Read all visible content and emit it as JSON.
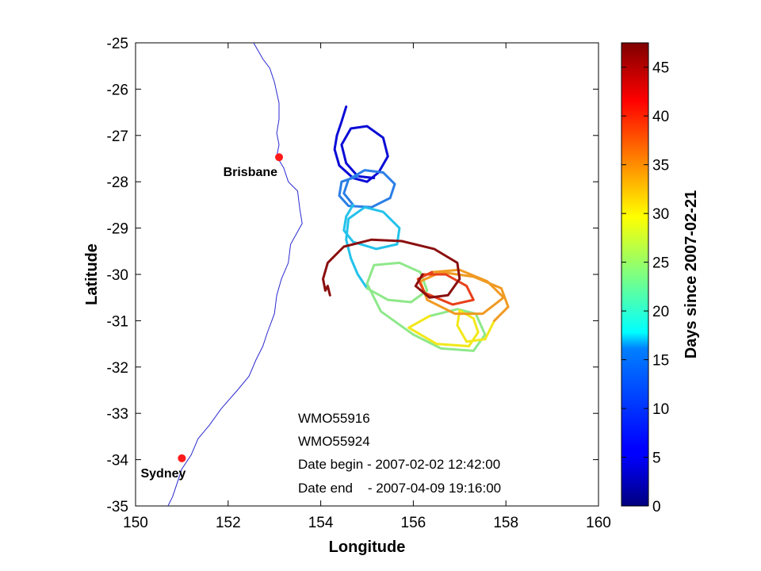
{
  "chart_data": {
    "type": "line",
    "xlabel": "Longitude",
    "ylabel": "Latitude",
    "xlim": [
      150,
      160
    ],
    "ylim": [
      -35,
      -25
    ],
    "x_ticks": [
      "150",
      "152",
      "154",
      "156",
      "158",
      "160"
    ],
    "y_ticks": [
      "-25",
      "-26",
      "-27",
      "-28",
      "-29",
      "-30",
      "-31",
      "-32",
      "-33",
      "-34",
      "-35"
    ],
    "colorbar": {
      "label": "Days since 2007-02-21",
      "range": [
        0,
        47.5
      ],
      "ticks": [
        "0",
        "5",
        "10",
        "15",
        "20",
        "25",
        "30",
        "35",
        "40",
        "45"
      ],
      "colormap": "jet"
    },
    "cities": [
      {
        "name": "Brisbane",
        "lon": 153.1,
        "lat": -27.47,
        "color": "#ff1a1a"
      },
      {
        "name": "Sydney",
        "lon": 151.0,
        "lat": -33.97,
        "color": "#ff1a1a"
      }
    ],
    "annotations": [
      "WMO55916",
      "WMO55924",
      "Date begin - 2007-02-02 12:42:00",
      "Date end    - 2007-04-09 19:16:00"
    ],
    "coastline_color": "#2a2acf",
    "coastline": [
      [
        152.55,
        -25.0
      ],
      [
        152.75,
        -25.35
      ],
      [
        152.9,
        -25.55
      ],
      [
        153.0,
        -25.85
      ],
      [
        153.1,
        -26.3
      ],
      [
        153.1,
        -26.65
      ],
      [
        153.05,
        -26.95
      ],
      [
        153.1,
        -27.2
      ],
      [
        153.05,
        -27.45
      ],
      [
        153.2,
        -27.7
      ],
      [
        153.3,
        -28.0
      ],
      [
        153.5,
        -28.2
      ],
      [
        153.55,
        -28.6
      ],
      [
        153.6,
        -28.9
      ],
      [
        153.35,
        -29.35
      ],
      [
        153.3,
        -29.75
      ],
      [
        153.15,
        -30.1
      ],
      [
        153.05,
        -30.45
      ],
      [
        153.0,
        -30.85
      ],
      [
        152.85,
        -31.25
      ],
      [
        152.75,
        -31.55
      ],
      [
        152.6,
        -31.85
      ],
      [
        152.45,
        -32.2
      ],
      [
        152.2,
        -32.5
      ],
      [
        151.85,
        -32.9
      ],
      [
        151.6,
        -33.25
      ],
      [
        151.35,
        -33.55
      ],
      [
        151.2,
        -33.9
      ],
      [
        151.0,
        -34.2
      ],
      [
        150.9,
        -34.5
      ],
      [
        150.8,
        -34.8
      ],
      [
        150.7,
        -35.0
      ]
    ],
    "series": [
      {
        "color": "#0b0bd6",
        "points": [
          [
            154.55,
            -26.38
          ],
          [
            154.45,
            -26.7
          ],
          [
            154.35,
            -27.0
          ],
          [
            154.3,
            -27.3
          ],
          [
            154.4,
            -27.65
          ],
          [
            154.7,
            -27.92
          ],
          [
            155.0,
            -28.0
          ],
          [
            155.25,
            -27.8
          ],
          [
            155.45,
            -27.45
          ],
          [
            155.35,
            -27.05
          ],
          [
            155.0,
            -26.8
          ],
          [
            154.65,
            -26.85
          ],
          [
            154.45,
            -27.2
          ],
          [
            154.55,
            -27.6
          ],
          [
            154.8,
            -27.88
          ],
          [
            155.15,
            -27.92
          ]
        ]
      },
      {
        "color": "#2a7ee6",
        "points": [
          [
            154.8,
            -27.88
          ],
          [
            154.45,
            -28.0
          ],
          [
            154.4,
            -28.3
          ],
          [
            154.6,
            -28.52
          ],
          [
            155.1,
            -28.55
          ],
          [
            155.5,
            -28.35
          ],
          [
            155.6,
            -28.05
          ],
          [
            155.35,
            -27.8
          ],
          [
            154.95,
            -27.75
          ],
          [
            154.6,
            -27.95
          ],
          [
            154.5,
            -28.25
          ],
          [
            154.7,
            -28.5
          ]
        ]
      },
      {
        "color": "#24c2ea",
        "points": [
          [
            154.7,
            -28.5
          ],
          [
            154.55,
            -28.75
          ],
          [
            154.5,
            -29.05
          ],
          [
            154.7,
            -29.3
          ],
          [
            155.2,
            -29.45
          ],
          [
            155.65,
            -29.35
          ],
          [
            155.7,
            -29.0
          ],
          [
            155.35,
            -28.65
          ],
          [
            154.95,
            -28.55
          ],
          [
            154.6,
            -28.8
          ],
          [
            154.55,
            -29.25
          ],
          [
            154.65,
            -29.65
          ],
          [
            154.8,
            -30.0
          ],
          [
            155.0,
            -30.3
          ]
        ]
      },
      {
        "color": "#8ee88a",
        "points": [
          [
            155.0,
            -30.3
          ],
          [
            155.45,
            -30.55
          ],
          [
            155.95,
            -30.6
          ],
          [
            156.3,
            -30.35
          ],
          [
            156.15,
            -29.95
          ],
          [
            155.7,
            -29.75
          ],
          [
            155.15,
            -29.8
          ],
          [
            155.0,
            -30.2
          ],
          [
            155.3,
            -30.8
          ],
          [
            156.0,
            -31.3
          ],
          [
            156.6,
            -31.6
          ],
          [
            157.3,
            -31.65
          ],
          [
            157.55,
            -31.3
          ],
          [
            157.35,
            -30.85
          ],
          [
            156.95,
            -30.75
          ],
          [
            156.35,
            -30.9
          ]
        ]
      },
      {
        "color": "#f2e81a",
        "points": [
          [
            156.35,
            -30.9
          ],
          [
            155.9,
            -31.15
          ],
          [
            156.5,
            -31.5
          ],
          [
            157.2,
            -31.55
          ],
          [
            157.4,
            -31.25
          ],
          [
            157.3,
            -30.95
          ],
          [
            157.0,
            -30.78
          ],
          [
            156.95,
            -31.1
          ],
          [
            157.15,
            -31.45
          ],
          [
            157.55,
            -31.4
          ],
          [
            157.75,
            -31.0
          ]
        ]
      },
      {
        "color": "#f09a22",
        "points": [
          [
            157.75,
            -31.0
          ],
          [
            158.05,
            -30.7
          ],
          [
            157.9,
            -30.3
          ],
          [
            157.3,
            -30.05
          ],
          [
            156.6,
            -29.95
          ],
          [
            156.15,
            -30.15
          ],
          [
            156.3,
            -30.55
          ],
          [
            156.9,
            -30.85
          ],
          [
            157.5,
            -30.85
          ],
          [
            157.95,
            -30.5
          ],
          [
            157.6,
            -30.15
          ],
          [
            157.0,
            -29.9
          ],
          [
            156.4,
            -29.95
          ]
        ]
      },
      {
        "color": "#e8401a",
        "points": [
          [
            156.4,
            -29.95
          ],
          [
            156.1,
            -30.1
          ],
          [
            156.25,
            -30.4
          ],
          [
            156.85,
            -30.65
          ],
          [
            157.3,
            -30.55
          ],
          [
            157.15,
            -30.25
          ],
          [
            156.7,
            -30.0
          ],
          [
            156.2,
            -30.0
          ]
        ]
      },
      {
        "color": "#8b0f0f",
        "points": [
          [
            156.2,
            -30.0
          ],
          [
            156.05,
            -30.25
          ],
          [
            156.35,
            -30.5
          ],
          [
            156.75,
            -30.45
          ],
          [
            157.0,
            -30.1
          ],
          [
            156.95,
            -29.75
          ],
          [
            156.45,
            -29.45
          ],
          [
            155.75,
            -29.28
          ],
          [
            155.1,
            -29.25
          ],
          [
            154.5,
            -29.4
          ],
          [
            154.15,
            -29.75
          ],
          [
            154.05,
            -30.1
          ],
          [
            154.1,
            -30.35
          ],
          [
            154.15,
            -30.25
          ],
          [
            154.2,
            -30.45
          ]
        ]
      }
    ]
  }
}
